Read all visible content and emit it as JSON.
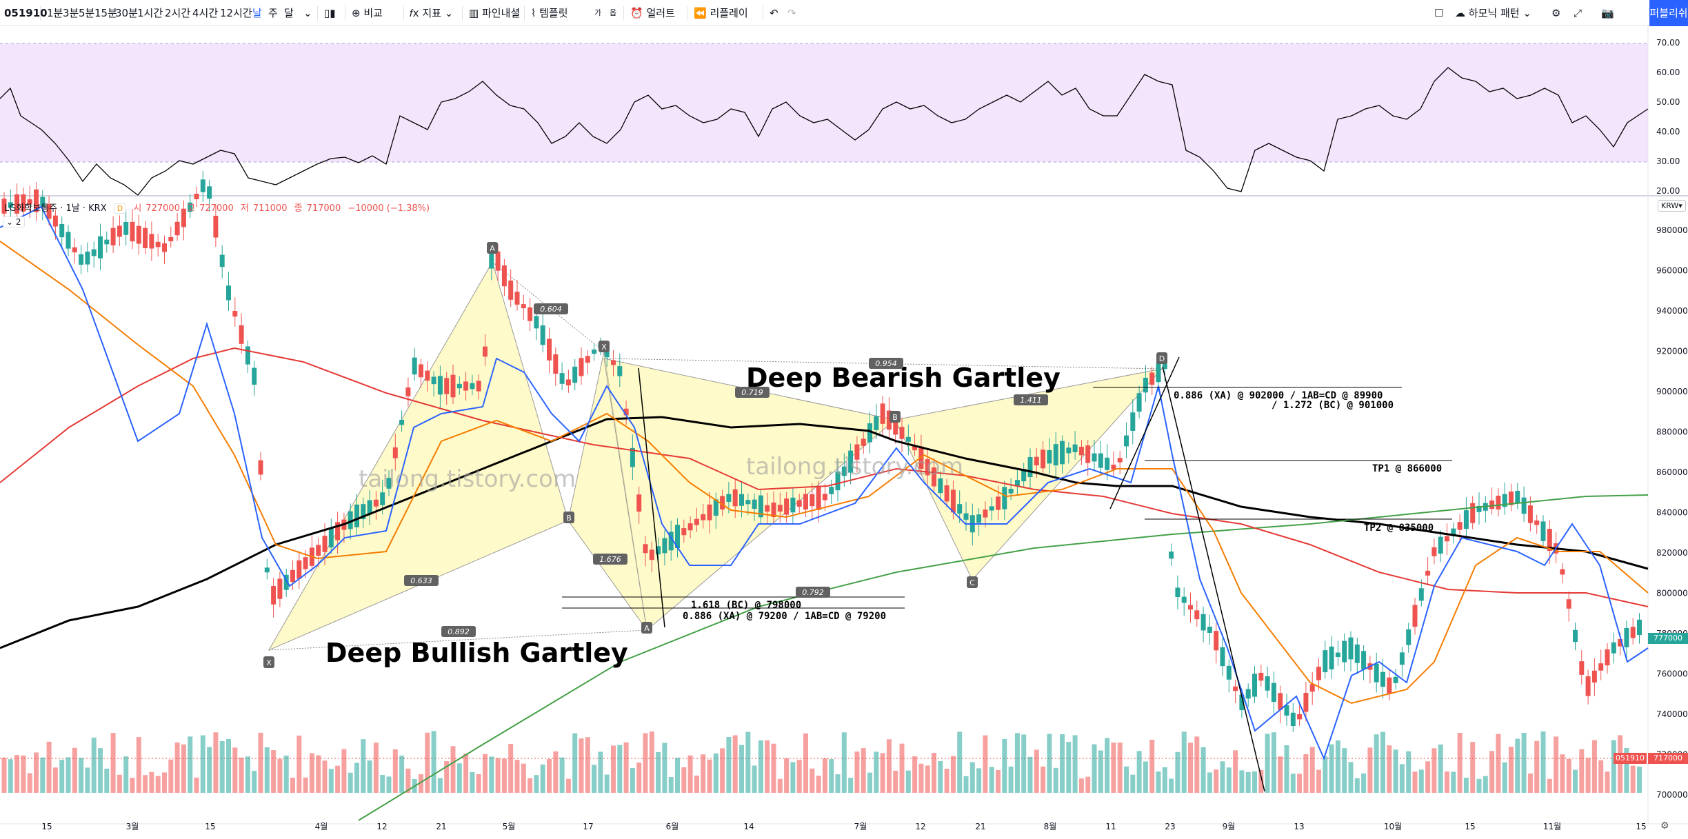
{
  "toolbar": {
    "symbol": "051910",
    "intervals": [
      "1분",
      "3분",
      "5분",
      "15분",
      "30분",
      "1시간",
      "2시간",
      "4시간",
      "12시간",
      "날",
      "주",
      "달"
    ],
    "active_interval": "날",
    "compare": "비교",
    "indicators": "지표",
    "pine": "파인내셜",
    "templates": "템플릿",
    "template_badge_1": "가",
    "template_badge_2": "옵",
    "alert": "얼러트",
    "replay": "리플레이",
    "harmonic": "하모닉 패턴",
    "publish": "퍼블리쉬"
  },
  "legend": {
    "title": "LG화학보통주 · 1날 · KRX",
    "badge": "D",
    "open_label": "시",
    "open": "727000",
    "high_label": "고",
    "high": "727000",
    "low_label": "저",
    "low": "711000",
    "close_label": "종",
    "close": "717000",
    "change": "−10000 (−1.38%)",
    "collapse": "⌄ 2"
  },
  "currency": "KRW▾",
  "rsi_axis": [
    "70.00",
    "60.00",
    "50.00",
    "40.00",
    "30.00",
    "20.00"
  ],
  "price_axis": [
    "980000",
    "960000",
    "940000",
    "920000",
    "900000",
    "880000",
    "860000",
    "840000",
    "820000",
    "800000",
    "780000",
    "760000",
    "740000",
    "720000",
    "700000"
  ],
  "price_labels": {
    "last": "777000",
    "close": "717000",
    "symbol": "051910"
  },
  "x_labels": [
    "15",
    "3월",
    "15",
    "4월",
    "12",
    "21",
    "5월",
    "17",
    "6월",
    "14",
    "7월",
    "12",
    "21",
    "8월",
    "11",
    "23",
    "9월",
    "13",
    "10월",
    "15",
    "11월",
    "15"
  ],
  "watermark": "tailong.tistory.com",
  "annotations": {
    "bearish_title": "Deep Bearish Gartley",
    "bullish_title": "Deep Bullish Gartley",
    "bear_line1": "0.886 (XA) @ 902000 / 1AB=CD @ 89900",
    "bear_line2": "/ 1.272 (BC) @ 901000",
    "tp1": "TP1 @ 866000",
    "tp2": "TP2 @ 835000",
    "bull_line1": "1.618 (BC) @ 798000",
    "bull_line2": "0.886 (XA) @ 79200 / 1AB=CD @ 79200",
    "bull_ratios": [
      "0.604",
      "0.633",
      "0.892",
      "1.676"
    ],
    "bear_ratios": [
      "0.954",
      "0.719",
      "1.411",
      "0.792"
    ],
    "points": [
      "X",
      "A",
      "B",
      "C",
      "D"
    ]
  },
  "colors": {
    "up": "#26a69a",
    "down": "#ef5350",
    "ma5": "#2962ff",
    "ma20": "#f57c00",
    "ma60": "#e53935",
    "ma120": "#000000",
    "ma240": "#43a047",
    "rsi_band": "#f3e5fc",
    "pattern_fill": "#fff59d"
  }
}
